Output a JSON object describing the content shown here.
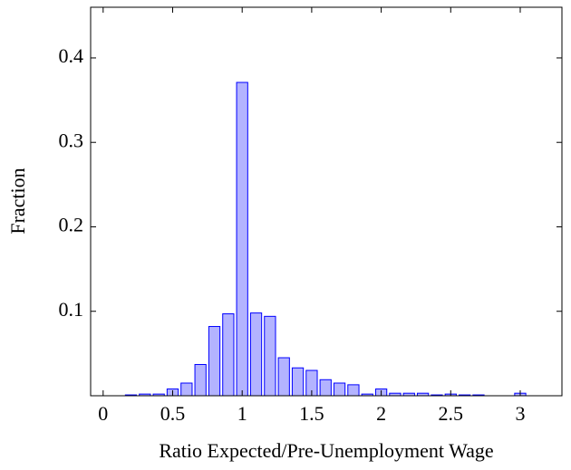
{
  "chart_data": {
    "type": "bar",
    "xlabel": "Ratio Expected/Pre-Unemployment Wage",
    "ylabel": "Fraction",
    "x": [
      0.2,
      0.3,
      0.4,
      0.5,
      0.6,
      0.7,
      0.8,
      0.9,
      1.0,
      1.1,
      1.2,
      1.3,
      1.4,
      1.5,
      1.6,
      1.7,
      1.8,
      1.9,
      2.0,
      2.1,
      2.2,
      2.3,
      2.4,
      2.5,
      2.6,
      2.7,
      2.8,
      2.9,
      3.0
    ],
    "values": [
      0.001,
      0.002,
      0.002,
      0.008,
      0.015,
      0.037,
      0.082,
      0.097,
      0.371,
      0.098,
      0.094,
      0.045,
      0.033,
      0.03,
      0.019,
      0.015,
      0.013,
      0.002,
      0.008,
      0.003,
      0.003,
      0.003,
      0.001,
      0.002,
      0.001,
      0.001,
      0.0,
      0.0,
      0.003
    ],
    "color": "#b3b3ff",
    "edge_color": "#0000ff",
    "xlim": [
      -0.09,
      3.3
    ],
    "ylim": [
      0,
      0.46
    ],
    "xticks": [
      0,
      0.5,
      1,
      1.5,
      2,
      2.5,
      3
    ],
    "yticks": [
      0.1,
      0.2,
      0.3,
      0.4
    ],
    "grid": false
  }
}
